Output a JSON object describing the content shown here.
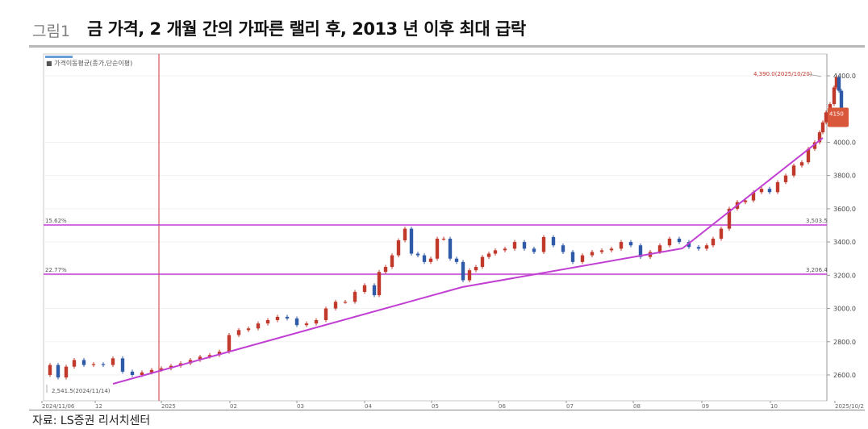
{
  "header": {
    "figure_label": "그림1",
    "title": "금 가격, 2 개월 간의 가파른 랠리 후, 2013 년 이후 최대 급락"
  },
  "source": "자료: LS증권 리서치센터",
  "chart_data": {
    "type": "candlestick",
    "title": "",
    "legend": "가격이동평균(종가,단순이평)",
    "y_axis_side": "right",
    "y_range": [
      2500,
      4450
    ],
    "y_ticks": [
      "4400.0",
      "4000.0",
      "3800.0",
      "3600.0",
      "3400.0",
      "3200.0",
      "3000.0",
      "2800.0",
      "2600.0"
    ],
    "x_ticks": [
      "2024/11/06",
      "12",
      "2025",
      "02",
      "03",
      "04",
      "05",
      "06",
      "07",
      "08",
      "09",
      "10",
      "2025/10/2"
    ],
    "fib_levels": [
      {
        "label_left": "15.62%",
        "label_right": "3,503.5",
        "value": 3503.5
      },
      {
        "label_left": "22.77%",
        "label_right": "3,206.4",
        "value": 3206.4
      }
    ],
    "annotations": {
      "high": {
        "text": "4,390.0(2025/10/20)",
        "value": 4390.0
      },
      "low": {
        "text": "2,541.5(2024/11/14)",
        "value": 2541.5
      }
    },
    "current_price_badge": {
      "value": 4150
    }
  },
  "colors": {
    "up": "#c0392b",
    "down": "#2e5aa8",
    "trendline": "#c13fd3",
    "fib_line": "#c13fd3",
    "vline": "#d32f2f"
  }
}
